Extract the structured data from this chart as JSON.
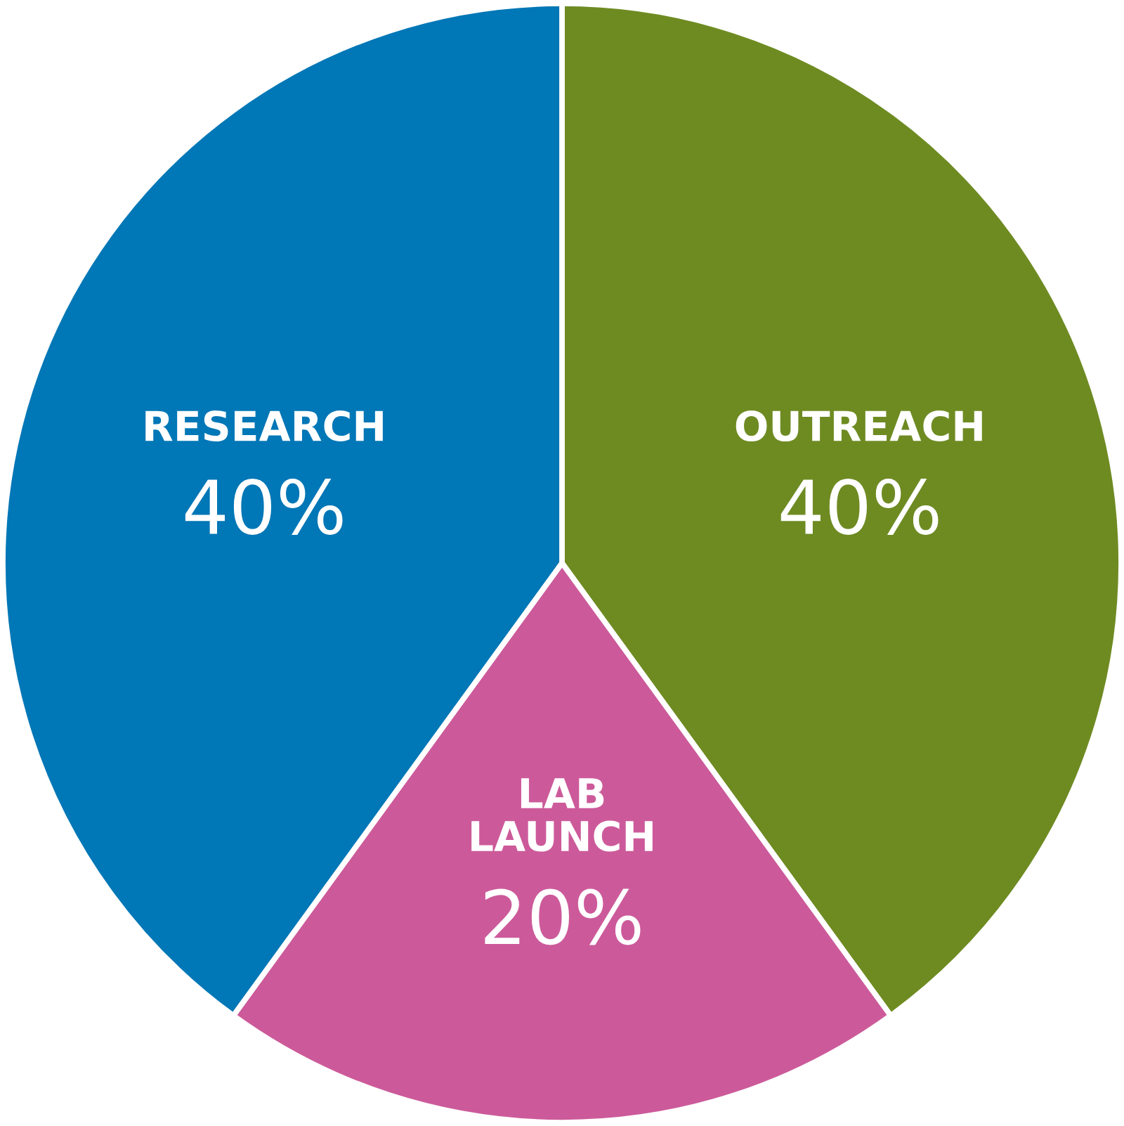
{
  "chart_data": {
    "type": "pie",
    "categories": [
      "OUTREACH",
      "LAB\nLAUNCH",
      "RESEARCH"
    ],
    "values": [
      40,
      20,
      40
    ],
    "colors": [
      "#6e8b22",
      "#cc5a9a",
      "#0077b6"
    ],
    "value_labels": [
      "40%",
      "20%",
      "40%"
    ]
  }
}
